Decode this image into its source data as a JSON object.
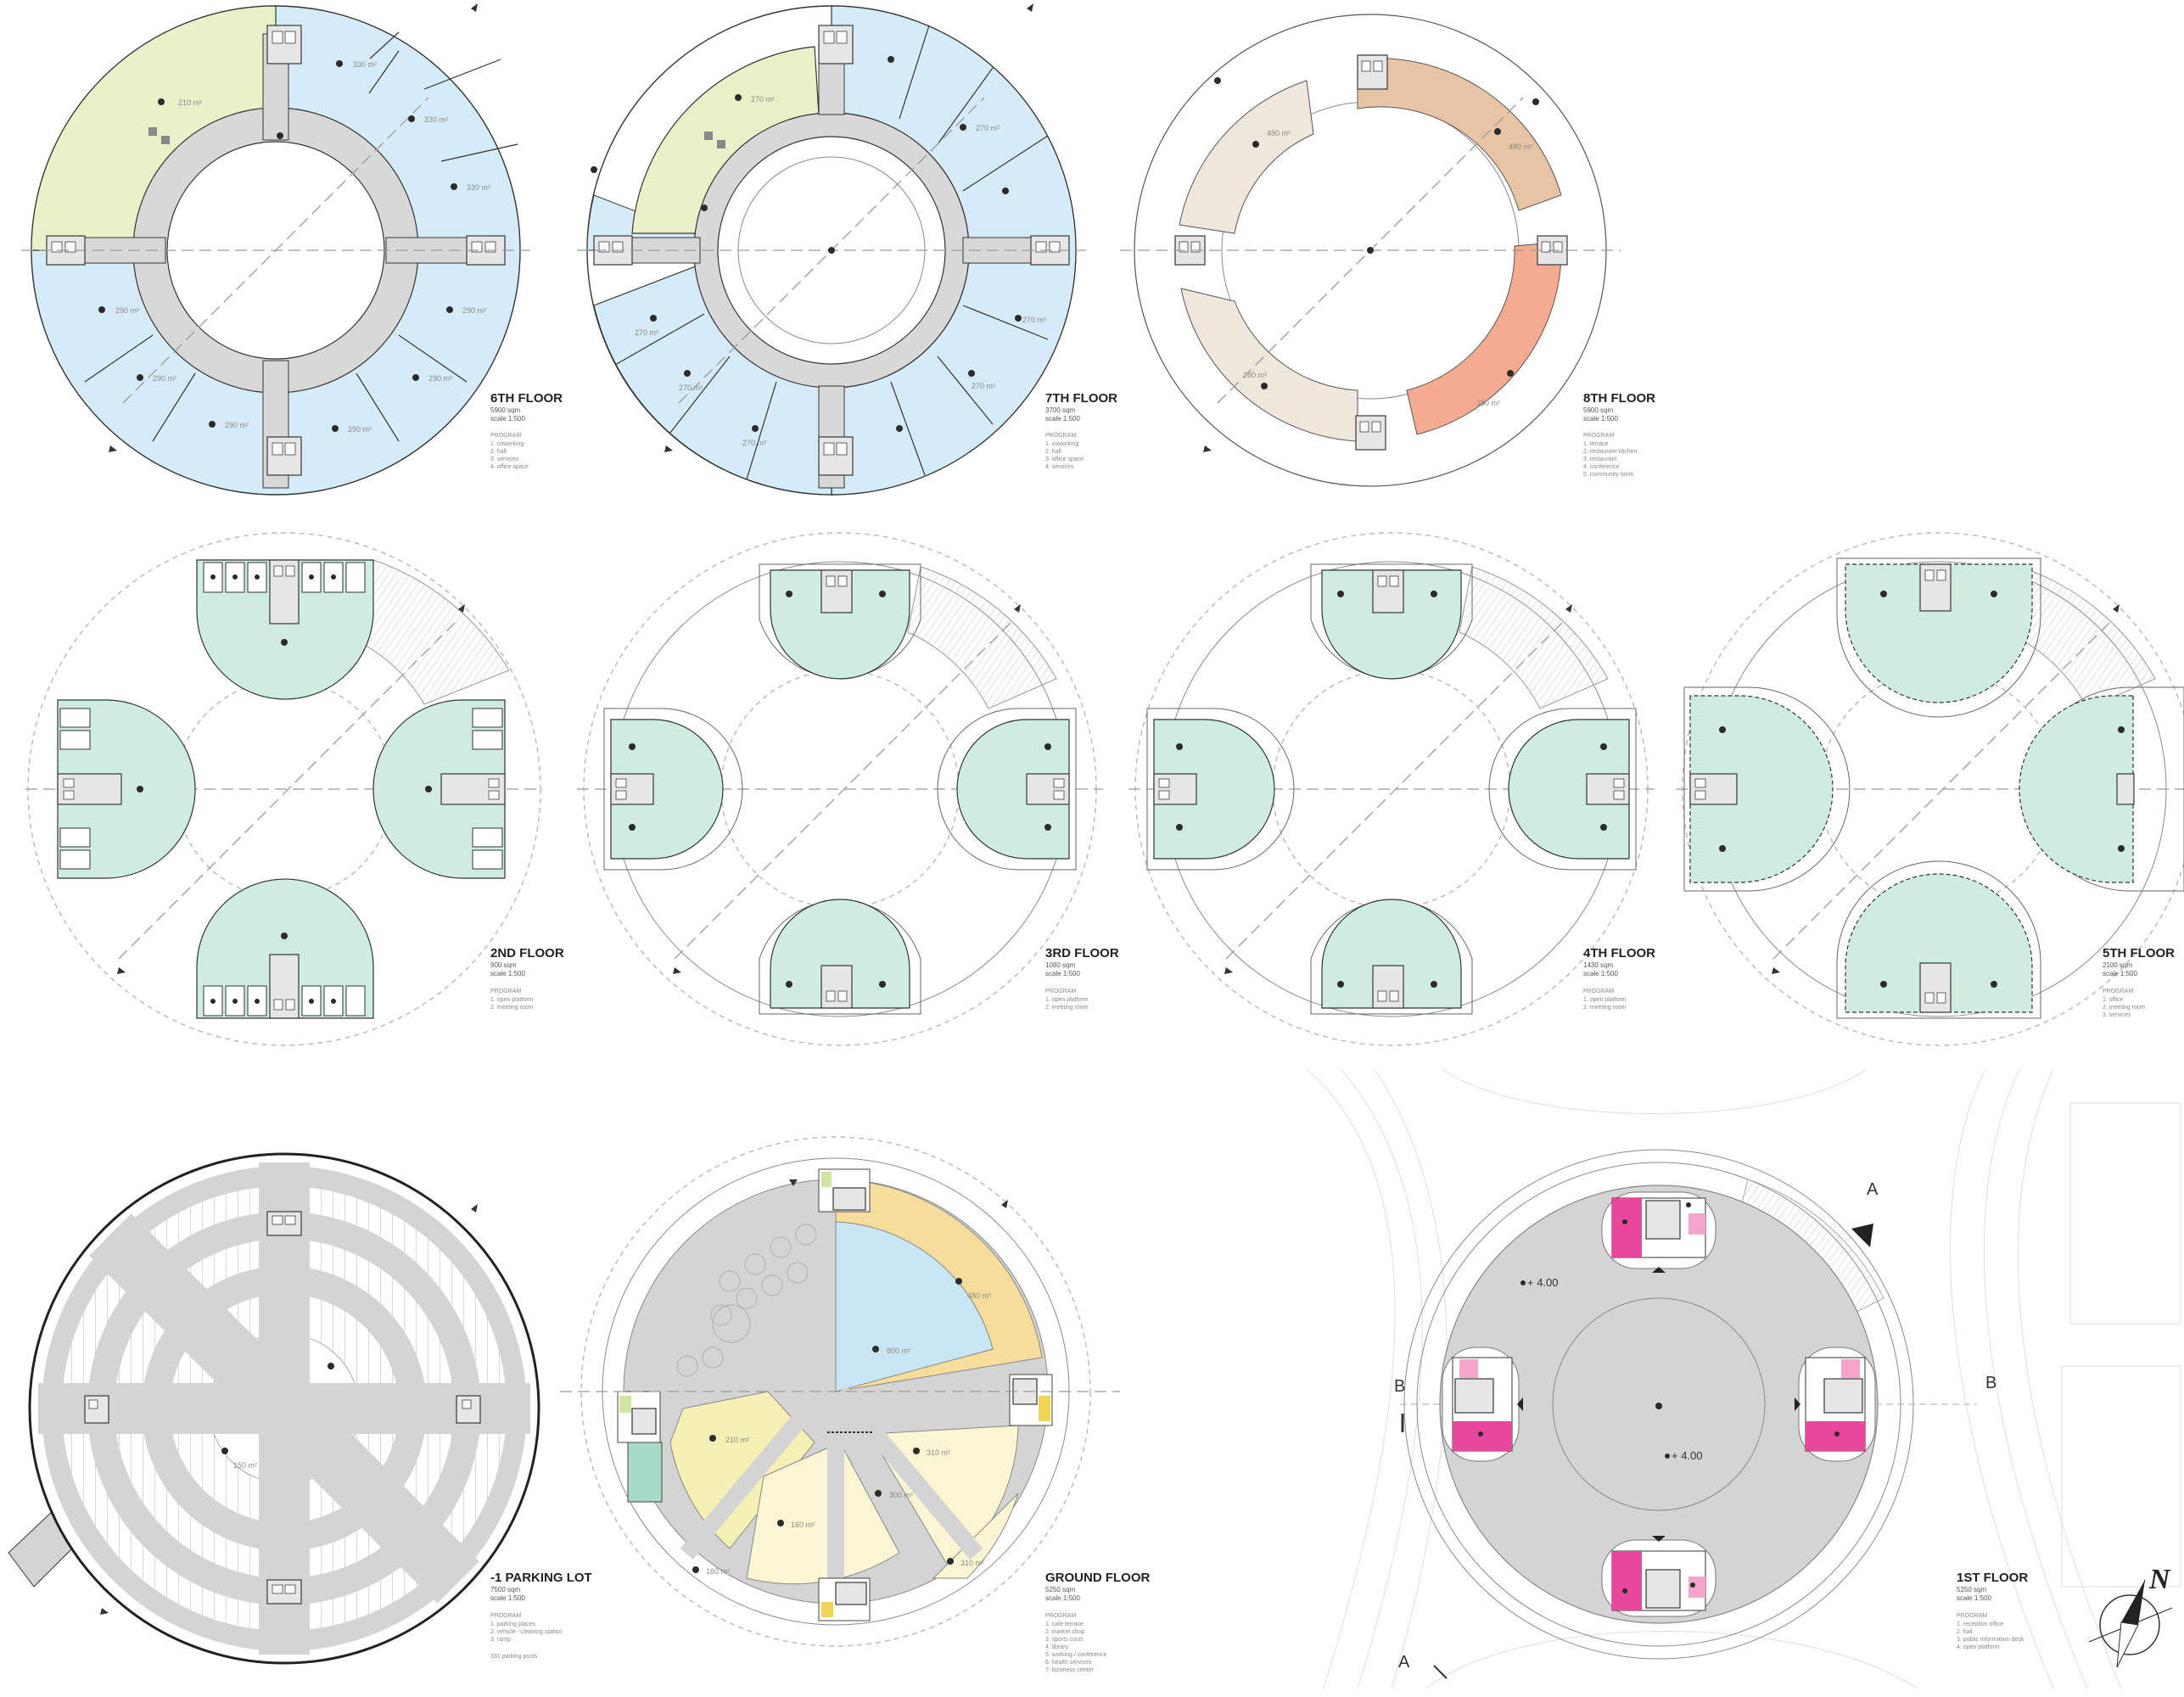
{
  "sheet": {
    "background": "#ffffff",
    "line_color": "#333333"
  },
  "colors": {
    "office_blue": "#d5ebf7",
    "lime": "#eaf1c8",
    "green": "#cfece1",
    "beige": "#efe6dc",
    "tan": "#e7c4a6",
    "salmon": "#f5ab8f",
    "grey_floor": "#d4d4d4",
    "yellow": "#f7dd9c",
    "pale_yellow": "#fbf5d4",
    "light_yellow": "#f5f0b4",
    "water": "#c9e6f5",
    "magenta": "#e8479c",
    "pink": "#f5a5cc"
  },
  "floors": {
    "f6": {
      "title": "6TH FLOOR",
      "area": "5900 sqm",
      "scale": "scale 1:500",
      "legend_title": "PROGRAM",
      "legend": [
        "1. coworking",
        "2. hall",
        "3. services",
        "4. office space"
      ],
      "labels": {
        "a1": "210 m²",
        "a2": "330 m²",
        "a3": "330 m²",
        "a4": "330 m²",
        "a5": "290 m²",
        "a6": "290 m²",
        "a7": "290 m²",
        "a8": "290 m²",
        "a9": "290 m²",
        "a10": "290 m²"
      }
    },
    "f7": {
      "title": "7TH FLOOR",
      "area": "3700 sqm",
      "scale": "scale 1:500",
      "legend_title": "PROGRAM",
      "legend": [
        "1. coworking",
        "2. hall",
        "3. office space",
        "4. services"
      ],
      "labels": {
        "a1": "270 m²",
        "a2": "270 m²",
        "a3": "270 m²",
        "a4": "270 m²",
        "a5": "270 m²",
        "a6": "270 m²",
        "a7": "270 m²"
      }
    },
    "f8": {
      "title": "8TH FLOOR",
      "area": "5900 sqm",
      "scale": "scale 1:500",
      "legend_title": "PROGRAM",
      "legend": [
        "1. terrace",
        "2. restaurant kitchen",
        "3. restaurant",
        "4. conference",
        "5. community room"
      ],
      "labels": {
        "a1": "480 m²",
        "a2": "480 m²",
        "a3": "280 m²",
        "a4": "380 m²"
      }
    },
    "f2": {
      "title": "2ND FLOOR",
      "area": "900 sqm",
      "scale": "scale 1:500",
      "legend_title": "PROGRAM",
      "legend": [
        "1. open platform",
        "2. meeting room"
      ]
    },
    "f3": {
      "title": "3RD FLOOR",
      "area": "1080 sqm",
      "scale": "scale 1:500",
      "legend_title": "PROGRAM",
      "legend": [
        "1. open platform",
        "2. meeting room"
      ]
    },
    "f4": {
      "title": "4TH FLOOR",
      "area": "1430 sqm",
      "scale": "scale 1:500",
      "legend_title": "PROGRAM",
      "legend": [
        "1. open platform",
        "2. meeting room"
      ]
    },
    "f5": {
      "title": "5TH FLOOR",
      "area": "2100 sqm",
      "scale": "scale 1:500",
      "legend_title": "PROGRAM",
      "legend": [
        "1. office",
        "2. meeting room",
        "3. services"
      ]
    },
    "parking": {
      "title": "-1 PARKING LOT",
      "area": "7500 sqm",
      "scale": "scale 1:500",
      "legend_title": "PROGRAM",
      "legend": [
        "1. parking places",
        "2. vehicle - cleaning station",
        "3. ramp"
      ],
      "note": "331 parking pools",
      "labels": {
        "a1": "150 m²"
      }
    },
    "ground": {
      "title": "GROUND FLOOR",
      "area": "5250 sqm",
      "scale": "scale 1:500",
      "legend_title": "PROGRAM",
      "legend": [
        "1. cafe terrace",
        "2. market shop",
        "3. sports court",
        "4. library",
        "5. working / conference",
        "6. health services",
        "7. business center"
      ],
      "labels": {
        "a1": "480 m²",
        "a2": "800 m²",
        "a3": "210 m²",
        "a4": "310 m²",
        "a5": "160 m²",
        "a6": "300 m²",
        "a7": "160 m²",
        "a8": "310 m²"
      }
    },
    "first": {
      "title": "1ST FLOOR",
      "area": "5250 sqm",
      "scale": "scale 1:500",
      "legend_title": "PROGRAM",
      "legend": [
        "1. reception office",
        "2. hall",
        "3. public information desk",
        "4. open platform"
      ],
      "levels": {
        "l1": "+ 4.00",
        "l2": "+ 4.00"
      },
      "sections": {
        "a_top": "A",
        "a_bottom": "A",
        "b_left": "B",
        "b_right": "B"
      },
      "north_label": "N"
    }
  }
}
